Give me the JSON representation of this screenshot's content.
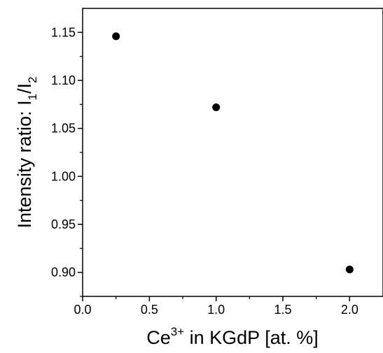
{
  "chart_data": {
    "type": "scatter",
    "xlabel": {
      "base": "Ce",
      "sup": "3+",
      "rest": " in KGdP [at. %]"
    },
    "ylabel": {
      "base": "Intensity ratio: I",
      "sub1": "1",
      "mid": "/I",
      "sub2": "2"
    },
    "xlim": [
      0.0,
      2.25
    ],
    "ylim": [
      0.875,
      1.175
    ],
    "xticks": [
      "0.0",
      "0.5",
      "1.0",
      "1.5",
      "2.0"
    ],
    "yticks": [
      "0.90",
      "0.95",
      "1.00",
      "1.05",
      "1.10",
      "1.15"
    ],
    "grid": false,
    "marker_color": "#000000",
    "series": [
      {
        "x": [
          0.25,
          1.0,
          2.0
        ],
        "y": [
          1.146,
          1.072,
          0.903
        ]
      }
    ]
  }
}
